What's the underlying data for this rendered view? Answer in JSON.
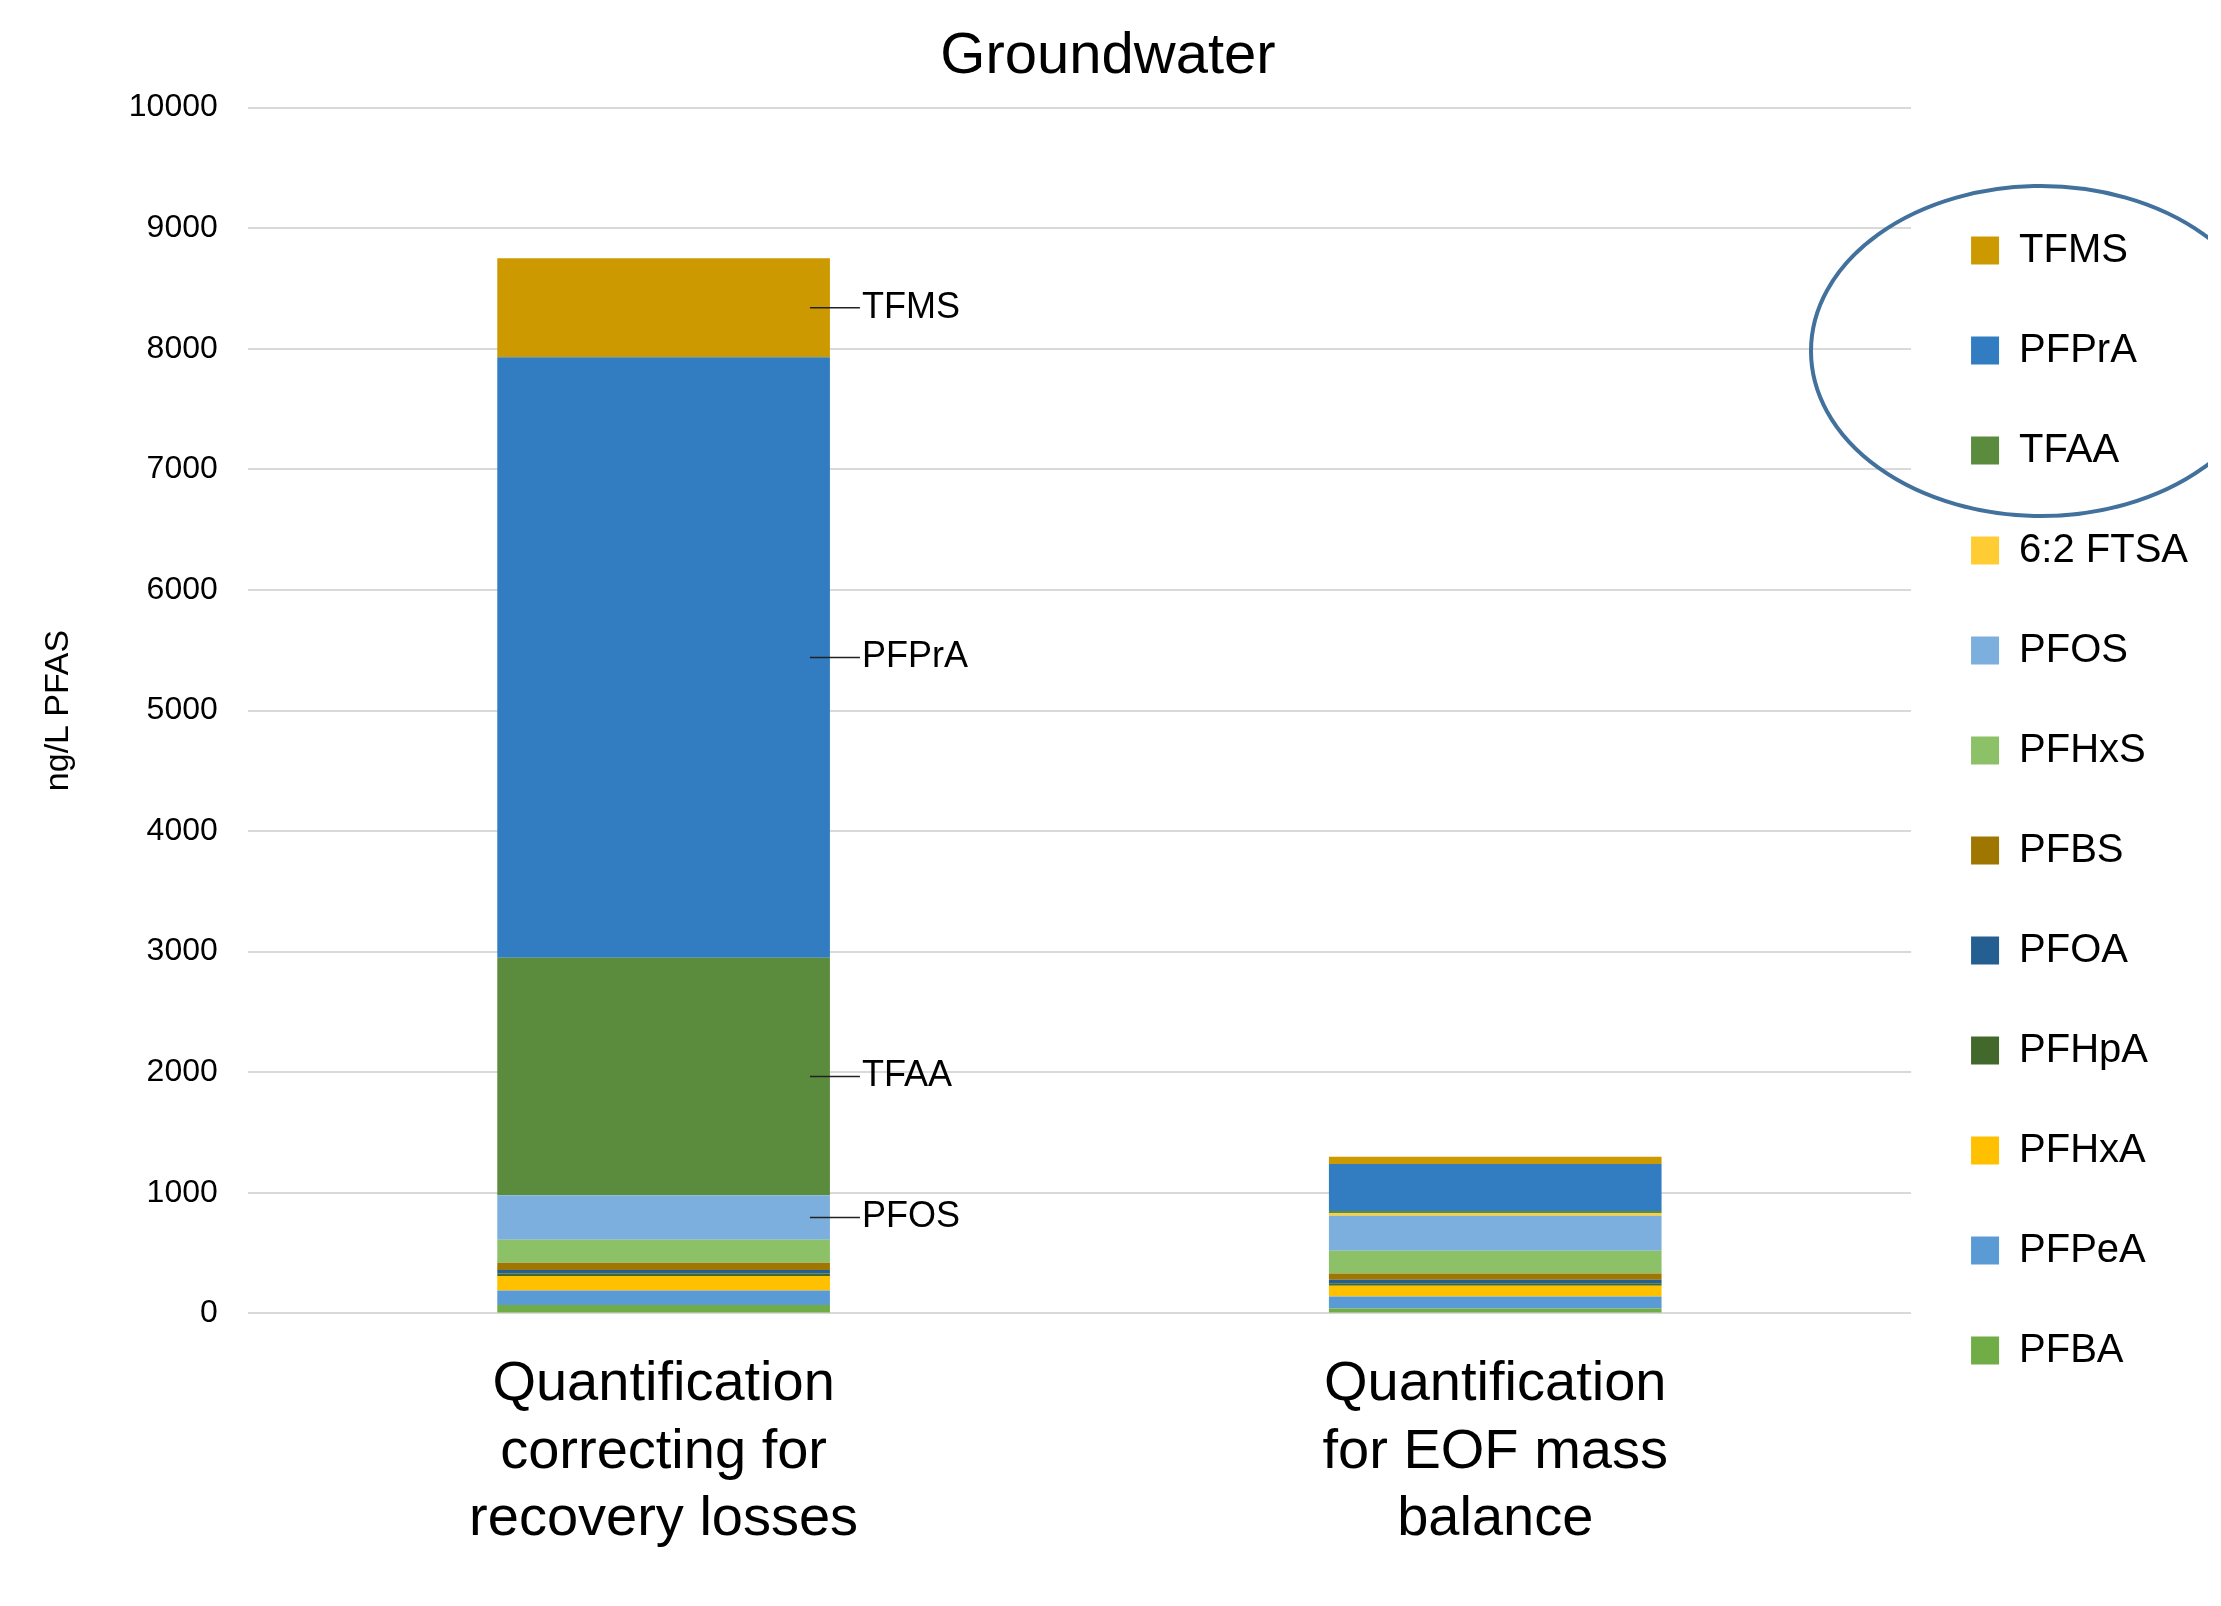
{
  "chart_data": {
    "type": "bar",
    "title": "Groundwater",
    "ylabel": "ng/L PFAS",
    "stacked": true,
    "categories": [
      "Quantification correcting for recovery losses",
      "Quantification for EOF mass balance"
    ],
    "series": [
      {
        "name": "PFBA",
        "color": "#70ad47",
        "values": [
          70,
          40
        ]
      },
      {
        "name": "PFPeA",
        "color": "#5b9bd5",
        "values": [
          120,
          100
        ]
      },
      {
        "name": "PFHxA",
        "color": "#ffc000",
        "values": [
          120,
          90
        ]
      },
      {
        "name": "PFHpA",
        "color": "#43682b",
        "values": [
          20,
          20
        ]
      },
      {
        "name": "PFOA",
        "color": "#255e91",
        "values": [
          30,
          30
        ]
      },
      {
        "name": "PFBS",
        "color": "#9e7600",
        "values": [
          60,
          50
        ]
      },
      {
        "name": "PFHxS",
        "color": "#8cc168",
        "values": [
          190,
          190
        ]
      },
      {
        "name": "PFOS",
        "color": "#7cafdd",
        "values": [
          370,
          290
        ]
      },
      {
        "name": "6:2 FTSA",
        "color": "#ffcd33",
        "values": [
          0,
          20
        ]
      },
      {
        "name": "TFAA",
        "color": "#5b8b3c",
        "values": [
          1970,
          20
        ]
      },
      {
        "name": "PFPrA",
        "color": "#327dc2",
        "values": [
          4980,
          390
        ]
      },
      {
        "name": "TFMS",
        "color": "#cc9a00",
        "values": [
          820,
          60
        ]
      }
    ],
    "ylim": [
      0,
      10000
    ],
    "yticks": [
      0,
      1000,
      2000,
      3000,
      4000,
      5000,
      6000,
      7000,
      8000,
      9000,
      10000
    ],
    "grid": "y",
    "legend": "right",
    "annotations": [
      "TFMS",
      "PFPrA",
      "TFAA",
      "PFOS"
    ]
  }
}
